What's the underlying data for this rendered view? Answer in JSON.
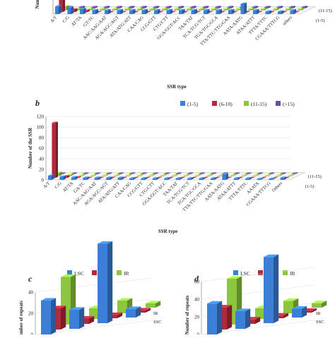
{
  "chart_data": [
    {
      "type": "bar",
      "panel": "a",
      "categories": [
        "A/T",
        "C/G",
        "AT/TA",
        "GT/TC",
        "AAC/AAG/AAT",
        "AGA/AGC/AGT",
        "ATA/ATG/ATT",
        "CAA/CAG",
        "CCG/GTT",
        "CTG/CTT",
        "GGA/GGT/ACC",
        "TAA/TAT",
        "TCA/TCG/TCT",
        "TGA/TGC/GCA",
        "TTA/TTC/TTG/GAA",
        "AATA/AATG",
        "ATAA/ATTT",
        "TTTA/TTTC",
        "CGAAA/TTTCG",
        "others"
      ],
      "xlabel": "SSR type",
      "ylabel": "Number",
      "depth_labels": [
        "(11-15)",
        "(1-5)"
      ],
      "series": [
        {
          "name": "(1-5)",
          "values": [
            6,
            5,
            4,
            3,
            3,
            3,
            3,
            3,
            3,
            3,
            3,
            3,
            3,
            3,
            3,
            8,
            3,
            2,
            2,
            3
          ]
        },
        {
          "name": "(6-10)",
          "values": [
            22,
            2,
            1,
            0,
            0,
            0,
            0,
            0,
            0,
            0,
            0,
            0,
            0,
            0,
            0,
            0,
            0,
            0,
            0,
            0
          ]
        },
        {
          "name": "(11-15)",
          "values": [
            3,
            1,
            1,
            1,
            1,
            1,
            1,
            1,
            1,
            1,
            1,
            1,
            1,
            1,
            1,
            1,
            1,
            1,
            1,
            1
          ]
        },
        {
          "name": "(>15)",
          "values": [
            1,
            1,
            1,
            1,
            1,
            1,
            1,
            1,
            1,
            1,
            1,
            1,
            1,
            1,
            1,
            1,
            1,
            1,
            1,
            1
          ]
        }
      ]
    },
    {
      "type": "bar",
      "panel": "b",
      "categories": [
        "A/T",
        "C/G",
        "AT/TA",
        "GA/TC",
        "AAC/AAG/AAT",
        "AGA/AGC/AGT",
        "ATA/ATG/ATT",
        "CAA/CAG",
        "CCG/GTT",
        "CTG/CTT",
        "GGA/GGT/ACC",
        "TAA/TAT",
        "TCA/TCG/TCT",
        "TGA/TGC/GCA",
        "TTA/TTC/TTG/GAA",
        "AATA/AATG",
        "ATAA/ATTT",
        "TTTA/TTTC",
        "AAATA",
        "CGAAA/TTTCG",
        "Others"
      ],
      "xlabel": "SSR type",
      "ylabel": "Number of the SSR",
      "ylim": [
        0,
        120
      ],
      "yticks": [
        0,
        20,
        40,
        60,
        80,
        100,
        120
      ],
      "depth_labels": [
        "(11-15)",
        "(1-5)"
      ],
      "legend": [
        "(1-5)",
        "(6-10)",
        "(11-15)",
        "(>15)"
      ],
      "legend_position": "top-right",
      "series": [
        {
          "name": "(1-5)",
          "values": [
            8,
            6,
            5,
            4,
            4,
            4,
            4,
            3,
            3,
            3,
            3,
            3,
            3,
            3,
            3,
            10,
            3,
            3,
            2,
            2,
            4
          ]
        },
        {
          "name": "(6-10)",
          "values": [
            104,
            3,
            1,
            0,
            0,
            0,
            0,
            0,
            0,
            0,
            0,
            0,
            0,
            0,
            0,
            0,
            0,
            0,
            0,
            0,
            0
          ]
        },
        {
          "name": "(11-15)",
          "values": [
            6,
            2,
            1,
            1,
            1,
            1,
            1,
            1,
            1,
            1,
            1,
            1,
            1,
            1,
            1,
            1,
            1,
            1,
            1,
            1,
            1
          ]
        },
        {
          "name": "(>15)",
          "values": [
            1,
            1,
            1,
            1,
            1,
            1,
            1,
            1,
            1,
            1,
            1,
            1,
            1,
            1,
            1,
            1,
            1,
            1,
            1,
            1,
            1
          ]
        }
      ]
    },
    {
      "type": "bar",
      "panel": "c",
      "legend": [
        "LSC",
        "SSC",
        "IR"
      ],
      "ylabel": "Number of repeats",
      "yticks": [
        0,
        20,
        40
      ],
      "depth_labels": [
        "IR",
        "SSC"
      ],
      "groups": 4,
      "series": [
        {
          "name": "LSC",
          "values": [
            32,
            18,
            75,
            8
          ]
        },
        {
          "name": "SSC",
          "values": [
            20,
            5,
            3,
            2
          ]
        },
        {
          "name": "IR",
          "values": [
            45,
            10,
            12,
            4
          ]
        }
      ]
    },
    {
      "type": "bar",
      "panel": "d",
      "legend": [
        "LSC",
        "SSC",
        "IR"
      ],
      "ylabel": "Number of repeats",
      "yticks": [
        0,
        20,
        40,
        60
      ],
      "depth_labels": [
        "IR",
        "SSC"
      ],
      "groups": 4,
      "series": [
        {
          "name": "LSC",
          "values": [
            35,
            20,
            75,
            10
          ]
        },
        {
          "name": "SSC",
          "values": [
            25,
            5,
            3,
            2
          ]
        },
        {
          "name": "IR",
          "values": [
            52,
            12,
            14,
            5
          ]
        }
      ]
    }
  ],
  "colors": {
    "s1": "#3b7fd6",
    "s2": "#b02a3a",
    "s3": "#8cc63f",
    "s4": "#6a4fa0"
  },
  "labels": {
    "panel_b": "b",
    "panel_c": "c",
    "panel_d": "d",
    "legend_b": [
      "(1-5)",
      "(6-10)",
      "(11-15)",
      "(>15)"
    ]
  }
}
